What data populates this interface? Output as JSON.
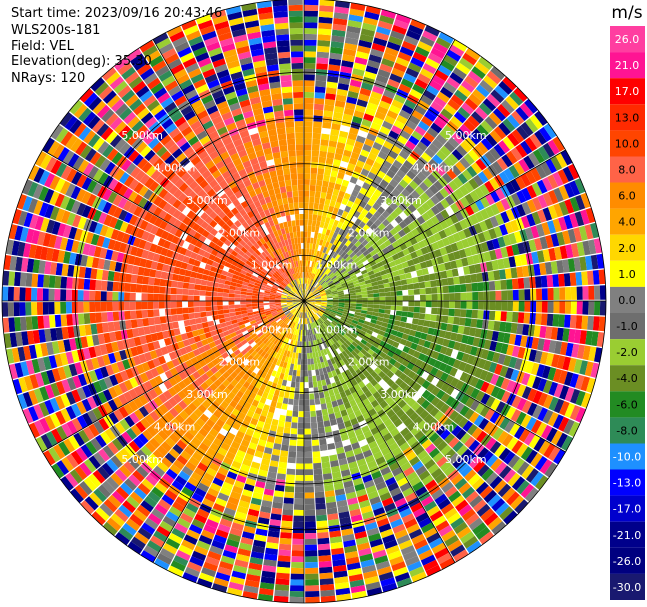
{
  "info": {
    "start_time": "Start time: 2023/09/16 20:43:46",
    "station": "WLS200s-181",
    "field": "Field: VEL",
    "elevation": "Elevation(deg): 35.30",
    "nrays": "NRays: 120"
  },
  "chart_data": {
    "type": "heatmap",
    "projection": "polar-ppi",
    "field": "VEL",
    "units": "m/s",
    "elevation_deg": 35.3,
    "nrays": 120,
    "range_rings_km": [
      1,
      2,
      3,
      4,
      5
    ],
    "ring_labels": [
      "1.00km",
      "2.00km",
      "3.00km",
      "4.00km",
      "5.00km"
    ],
    "max_range_km": 6.6,
    "velocity_pattern": {
      "northwest": "positive (6 to 8 m/s)",
      "north_south_center": "positive (2 to 4 m/s)",
      "east_southeast": "negative (-4 to -10 m/s)",
      "outer_ranges": "noisy mixed values"
    },
    "colorbar": {
      "label": "m/s",
      "ticks": [
        "26.0",
        "21.0",
        "17.0",
        "13.0",
        "10.0",
        "8.0",
        "6.0",
        "4.0",
        "2.0",
        "1.0",
        "0.0",
        "-1.0",
        "-2.0",
        "-4.0",
        "-6.0",
        "-8.0",
        "-10.0",
        "-13.0",
        "-17.0",
        "-21.0",
        "-26.0",
        "-30.0"
      ],
      "colors": [
        "#ff3ea0",
        "#ff1493",
        "#ff0000",
        "#ff2a00",
        "#ff4500",
        "#ff6347",
        "#ff8c00",
        "#ffa500",
        "#ffd700",
        "#ffff00",
        "#808080",
        "#6e6e6e",
        "#9acd32",
        "#6b8e23",
        "#228b22",
        "#2e8b57",
        "#1e90ff",
        "#0000ff",
        "#0000cd",
        "#00008b",
        "#000080",
        "#191970"
      ]
    }
  }
}
